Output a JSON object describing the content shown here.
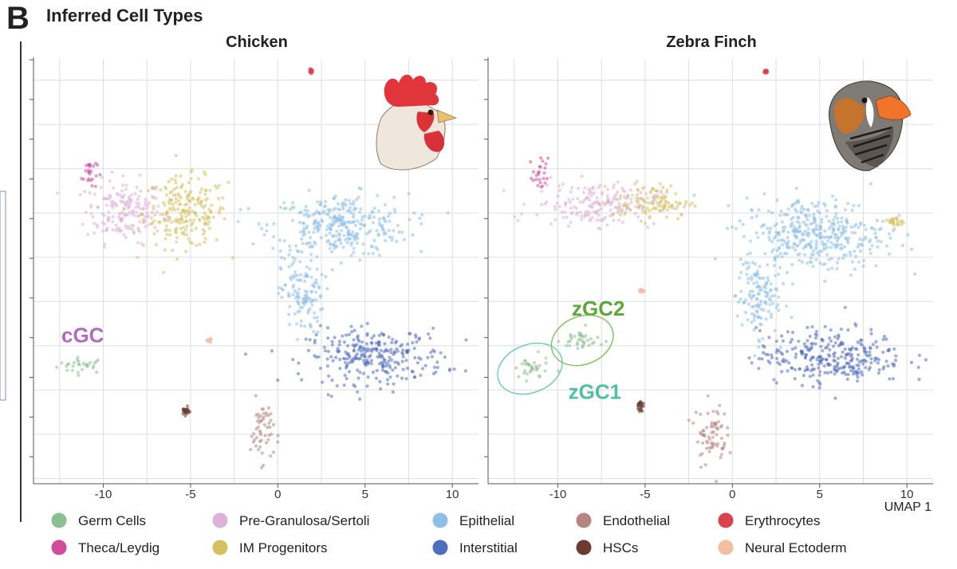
{
  "figure": {
    "panel_letter": "B",
    "title": "Inferred Cell Types"
  },
  "legend": [
    {
      "label": "Germ Cells",
      "color": "#8cbf8f"
    },
    {
      "label": "Pre-Granulosa/Sertoli",
      "color": "#dcb3d8"
    },
    {
      "label": "Epithelial",
      "color": "#8cc0e8"
    },
    {
      "label": "Endothelial",
      "color": "#b58680"
    },
    {
      "label": "Erythrocytes",
      "color": "#d9434a"
    },
    {
      "label": "Theca/Leydig",
      "color": "#d24a9a"
    },
    {
      "label": "IM Progenitors",
      "color": "#d6c162"
    },
    {
      "label": "Interstitial",
      "color": "#4f6dbd"
    },
    {
      "label": "HSCs",
      "color": "#6b3a32"
    },
    {
      "label": "Neural Ectoderm",
      "color": "#f2bfa0"
    }
  ],
  "chart_data": [
    {
      "type": "scatter",
      "title": "Chicken",
      "xlabel": "",
      "ylabel": "",
      "xlim": [
        -14,
        11.5
      ],
      "ylim": [
        -12.8,
        11.2
      ],
      "x_ticks": [
        -10,
        -5,
        0,
        5,
        10
      ],
      "grid": true,
      "legend_position": "bottom",
      "clusters": [
        {
          "cell_type": "Germ Cells",
          "center": [
            -11.2,
            -6.1
          ],
          "extent": [
            1.3,
            0.4
          ]
        },
        {
          "cell_type": "Pre-Granulosa/Sertoli",
          "center": [
            -8.8,
            2.6
          ],
          "extent": [
            2.0,
            1.6
          ]
        },
        {
          "cell_type": "Theca/Leydig",
          "center": [
            -10.8,
            4.8
          ],
          "extent": [
            0.4,
            0.9
          ]
        },
        {
          "cell_type": "IM Progenitors",
          "center": [
            -5.3,
            2.5
          ],
          "extent": [
            2.2,
            1.8
          ]
        },
        {
          "cell_type": "Epithelial",
          "center": [
            3.5,
            1.8
          ],
          "extent": [
            3.6,
            1.6
          ]
        },
        {
          "cell_type": "Epithelial",
          "center": [
            1.4,
            -2.2
          ],
          "extent": [
            1.1,
            2.0
          ]
        },
        {
          "cell_type": "Interstitial",
          "center": [
            5.6,
            -5.6
          ],
          "extent": [
            3.6,
            1.4
          ]
        },
        {
          "cell_type": "Endothelial",
          "center": [
            -0.9,
            -9.8
          ],
          "extent": [
            0.6,
            1.6
          ]
        },
        {
          "cell_type": "HSCs",
          "center": [
            -5.3,
            -8.7
          ],
          "extent": [
            0.2,
            0.2
          ]
        },
        {
          "cell_type": "Erythrocytes",
          "center": [
            1.9,
            10.5
          ],
          "extent": [
            0.1,
            0.1
          ]
        },
        {
          "cell_type": "Neural Ectoderm",
          "center": [
            -3.9,
            -4.7
          ],
          "extent": [
            0.1,
            0.1
          ]
        }
      ],
      "annotations": [
        {
          "text": "cGC",
          "x": -12.4,
          "y": -4.8,
          "color": "#b06ac0"
        }
      ]
    },
    {
      "type": "scatter",
      "title": "Zebra Finch",
      "xlabel": "UMAP 1",
      "ylabel": "",
      "xlim": [
        -14,
        11.5
      ],
      "ylim": [
        -12.8,
        11.2
      ],
      "x_ticks": [
        -10,
        -5,
        0,
        5,
        10
      ],
      "grid": true,
      "legend_position": "bottom",
      "clusters": [
        {
          "cell_type": "Germ Cells",
          "center": [
            -11.6,
            -6.3
          ],
          "extent": [
            1.0,
            0.6
          ]
        },
        {
          "cell_type": "Germ Cells",
          "center": [
            -8.6,
            -4.7
          ],
          "extent": [
            1.1,
            0.6
          ]
        },
        {
          "cell_type": "Pre-Granulosa/Sertoli",
          "center": [
            -7.8,
            3.0
          ],
          "extent": [
            3.2,
            1.1
          ]
        },
        {
          "cell_type": "Theca/Leydig",
          "center": [
            -11.0,
            4.6
          ],
          "extent": [
            0.4,
            0.9
          ]
        },
        {
          "cell_type": "IM Progenitors",
          "center": [
            -4.6,
            3.1
          ],
          "extent": [
            2.0,
            0.9
          ]
        },
        {
          "cell_type": "IM Progenitors",
          "center": [
            9.4,
            2.0
          ],
          "extent": [
            0.4,
            0.3
          ]
        },
        {
          "cell_type": "Epithelial",
          "center": [
            4.7,
            1.3
          ],
          "extent": [
            3.7,
            1.9
          ]
        },
        {
          "cell_type": "Epithelial",
          "center": [
            1.4,
            -2.3
          ],
          "extent": [
            1.1,
            2.0
          ]
        },
        {
          "cell_type": "Interstitial",
          "center": [
            5.7,
            -5.6
          ],
          "extent": [
            3.8,
            1.4
          ]
        },
        {
          "cell_type": "Endothelial",
          "center": [
            -1.2,
            -10.0
          ],
          "extent": [
            0.8,
            1.6
          ]
        },
        {
          "cell_type": "HSCs",
          "center": [
            -5.3,
            -8.4
          ],
          "extent": [
            0.15,
            0.3
          ]
        },
        {
          "cell_type": "Erythrocytes",
          "center": [
            1.9,
            10.5
          ],
          "extent": [
            0.1,
            0.1
          ]
        },
        {
          "cell_type": "Neural Ectoderm",
          "center": [
            -5.2,
            -1.9
          ],
          "extent": [
            0.1,
            0.1
          ]
        }
      ],
      "annotations": [
        {
          "text": "zGC2",
          "x": -9.2,
          "y": -3.3,
          "color": "#5aa838"
        },
        {
          "text": "zGC1",
          "x": -9.4,
          "y": -8.0,
          "color": "#4fc0a0"
        }
      ]
    }
  ]
}
